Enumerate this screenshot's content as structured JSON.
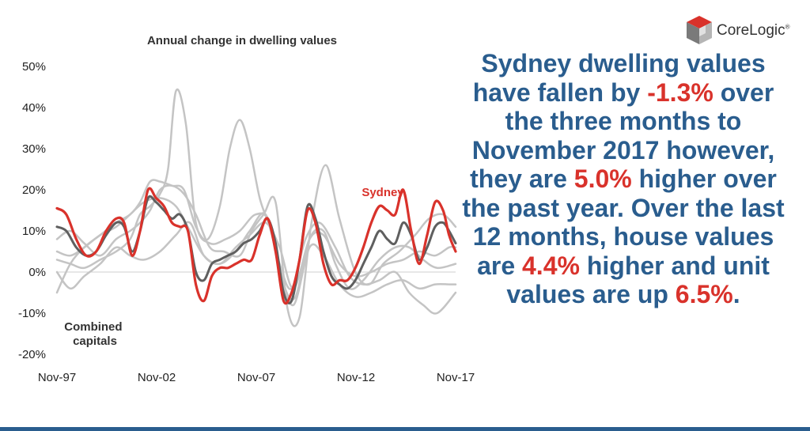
{
  "brand": {
    "name": "CoreLogic",
    "mark": "®",
    "colors": {
      "red": "#d9322b",
      "grey": "#7a7a7a",
      "blue": "#2a5d8e"
    }
  },
  "headline": {
    "parts": [
      {
        "text": "Sydney dwelling values have fallen by ",
        "highlight": false
      },
      {
        "text": "-1.3%",
        "highlight": true
      },
      {
        "text": " over the three months to November 2017 however, they are ",
        "highlight": false
      },
      {
        "text": "5.0%",
        "highlight": true
      },
      {
        "text": " higher over the past year. Over the last 12 months, house values are ",
        "highlight": false
      },
      {
        "text": "4.4%",
        "highlight": true
      },
      {
        "text": " higher and unit values are up ",
        "highlight": false
      },
      {
        "text": "6.5%",
        "highlight": true
      },
      {
        "text": ".",
        "highlight": false
      }
    ]
  },
  "chart_data": {
    "type": "line",
    "title": "Annual change in dwelling values",
    "xlabel": "",
    "ylabel": "",
    "x_ticks": [
      "Nov-97",
      "Nov-02",
      "Nov-07",
      "Nov-12",
      "Nov-17"
    ],
    "y_ticks": [
      "50%",
      "40%",
      "30%",
      "20%",
      "10%",
      "0%",
      "-10%",
      "-20%"
    ],
    "ylim": [
      -20,
      50
    ],
    "xlim": [
      1997.83,
      2017.83
    ],
    "grid": false,
    "annotations": [
      {
        "text": "Sydney",
        "color": "#d9322b"
      },
      {
        "text": "Combined\ncapitals",
        "color": "#333333"
      }
    ],
    "series": [
      {
        "name": "Sydney",
        "color": "#d9322b",
        "width": 3.2,
        "x": [
          1997.83,
          1998.3,
          1998.8,
          1999.3,
          1999.8,
          2000.3,
          2000.8,
          2001.2,
          2001.6,
          2002.0,
          2002.4,
          2002.8,
          2003.2,
          2003.6,
          2004.0,
          2004.4,
          2004.8,
          2005.2,
          2005.6,
          2006.0,
          2006.4,
          2006.8,
          2007.2,
          2007.6,
          2008.0,
          2008.4,
          2008.8,
          2009.2,
          2009.6,
          2010.0,
          2010.4,
          2010.8,
          2011.2,
          2011.6,
          2012.0,
          2012.4,
          2012.8,
          2013.2,
          2013.6,
          2014.0,
          2014.4,
          2014.8,
          2015.2,
          2015.6,
          2016.0,
          2016.4,
          2016.8,
          2017.2,
          2017.5,
          2017.83
        ],
        "y": [
          15.5,
          14,
          8,
          4,
          5,
          10,
          13,
          12,
          4,
          10,
          20,
          18,
          16,
          12,
          11,
          10,
          -3,
          -7,
          -1,
          1,
          1,
          2,
          3,
          3,
          9,
          13,
          5,
          -7,
          -5,
          3,
          15,
          12,
          2,
          -3,
          -2,
          -2,
          1,
          6,
          12,
          16,
          15,
          14,
          20,
          10,
          2,
          9,
          17,
          15,
          9,
          5
        ]
      },
      {
        "name": "Combined capitals",
        "color": "#5f5f5f",
        "width": 3,
        "x": [
          1997.83,
          1998.3,
          1998.8,
          1999.3,
          1999.8,
          2000.3,
          2000.8,
          2001.2,
          2001.6,
          2002.0,
          2002.4,
          2002.8,
          2003.2,
          2003.6,
          2004.0,
          2004.4,
          2004.8,
          2005.2,
          2005.6,
          2006.0,
          2006.4,
          2006.8,
          2007.2,
          2007.6,
          2008.0,
          2008.4,
          2008.8,
          2009.2,
          2009.6,
          2010.0,
          2010.4,
          2010.8,
          2011.2,
          2011.6,
          2012.0,
          2012.4,
          2012.8,
          2013.2,
          2013.6,
          2014.0,
          2014.4,
          2014.8,
          2015.2,
          2015.6,
          2016.0,
          2016.4,
          2016.8,
          2017.2,
          2017.5,
          2017.83
        ],
        "y": [
          11,
          10,
          6,
          4,
          5,
          9,
          12,
          11,
          5,
          10,
          18,
          17,
          15,
          13,
          14,
          10,
          0,
          -2,
          2,
          3,
          4,
          5,
          7,
          8,
          10,
          13,
          7,
          -5,
          -7,
          3,
          16,
          13,
          5,
          -1,
          -3,
          -4,
          -2,
          2,
          6,
          10,
          8,
          7,
          12,
          9,
          3,
          6,
          11,
          12,
          10,
          7
        ]
      },
      {
        "name": "",
        "color": "#c4c4c4",
        "width": 2.5,
        "x": [
          1997.83,
          1998.5,
          1999.2,
          2000.0,
          2000.8,
          2001.5,
          2002.0,
          2002.5,
          2003.0,
          2003.4,
          2003.8,
          2004.3,
          2004.8,
          2005.5,
          2006.3,
          2007.0,
          2007.8,
          2008.5,
          2009.2,
          2009.8,
          2010.5,
          2011.2,
          2011.8,
          2012.5,
          2013.2,
          2014.0,
          2014.8,
          2015.5,
          2016.2,
          2016.9,
          2017.83
        ],
        "y": [
          3,
          2,
          1,
          3,
          5,
          8,
          14,
          16,
          19,
          25,
          44,
          36,
          12,
          7,
          8,
          10,
          14,
          12,
          -3,
          -6,
          8,
          10,
          2,
          -4,
          -2,
          3,
          6,
          6,
          3,
          1,
          2
        ]
      },
      {
        "name": "",
        "color": "#c4c4c4",
        "width": 2.5,
        "x": [
          1997.83,
          1998.5,
          1999.2,
          2000.0,
          2000.8,
          2001.5,
          2002.0,
          2002.5,
          2003.0,
          2003.6,
          2004.2,
          2004.8,
          2005.4,
          2006.0,
          2006.5,
          2007.0,
          2007.5,
          2008.0,
          2008.5,
          2009.0,
          2009.6,
          2010.3,
          2011.0,
          2011.8,
          2012.5,
          2013.2,
          2014.0,
          2014.8,
          2015.5,
          2016.2,
          2016.9,
          2017.83
        ],
        "y": [
          -5,
          2,
          6,
          9,
          12,
          14,
          17,
          22,
          22,
          21,
          20,
          11,
          8,
          16,
          30,
          37,
          30,
          18,
          11,
          2,
          -4,
          8,
          12,
          6,
          -1,
          -3,
          -2,
          0,
          -5,
          -8,
          -10,
          -5
        ]
      },
      {
        "name": "",
        "color": "#c4c4c4",
        "width": 2.5,
        "x": [
          1997.83,
          1998.5,
          1999.2,
          2000.0,
          2000.8,
          2001.5,
          2002.0,
          2002.5,
          2003.0,
          2003.6,
          2004.2,
          2004.8,
          2005.5,
          2006.2,
          2007.0,
          2007.6,
          2008.2,
          2008.8,
          2009.4,
          2010.0,
          2010.6,
          2011.3,
          2012.0,
          2012.8,
          2013.5,
          2014.2,
          2015.0,
          2015.8,
          2016.5,
          2017.2,
          2017.83
        ],
        "y": [
          8,
          10,
          7,
          4,
          8,
          10,
          12,
          15,
          20,
          21,
          19,
          14,
          6,
          5,
          4,
          10,
          14,
          17,
          -9,
          -11,
          12,
          26,
          13,
          0,
          -3,
          2,
          5,
          9,
          13,
          14,
          11
        ]
      },
      {
        "name": "",
        "color": "#c4c4c4",
        "width": 2.5,
        "x": [
          1997.83,
          1998.5,
          1999.2,
          2000.0,
          2000.8,
          2001.5,
          2002.2,
          2003.0,
          2003.8,
          2004.5,
          2005.2,
          2006.0,
          2006.8,
          2007.5,
          2008.3,
          2009.0,
          2009.7,
          2010.5,
          2011.2,
          2012.0,
          2012.8,
          2013.6,
          2014.4,
          2015.2,
          2016.0,
          2016.8,
          2017.5,
          2017.83
        ],
        "y": [
          0,
          -4,
          -1,
          2,
          6,
          4,
          3,
          5,
          9,
          12,
          4,
          2,
          5,
          10,
          14,
          1,
          -8,
          6,
          4,
          -3,
          -6,
          -5,
          -3,
          -2,
          -4,
          -3,
          -3,
          -3
        ]
      },
      {
        "name": "",
        "color": "#c4c4c4",
        "width": 2.5,
        "x": [
          1997.83,
          1998.5,
          1999.2,
          2000.0,
          2000.8,
          2001.5,
          2002.2,
          2003.0,
          2003.8,
          2004.5,
          2005.2,
          2006.0,
          2006.8,
          2007.5,
          2008.3,
          2009.0,
          2009.7,
          2010.5,
          2011.2,
          2012.0,
          2012.8,
          2013.6,
          2014.4,
          2015.2,
          2016.0,
          2016.8,
          2017.5,
          2017.83
        ],
        "y": [
          5,
          4,
          6,
          9,
          11,
          14,
          17,
          18,
          16,
          10,
          4,
          2,
          6,
          9,
          12,
          6,
          -4,
          8,
          9,
          2,
          -1,
          0,
          2,
          3,
          5,
          4,
          6,
          6
        ]
      }
    ]
  }
}
